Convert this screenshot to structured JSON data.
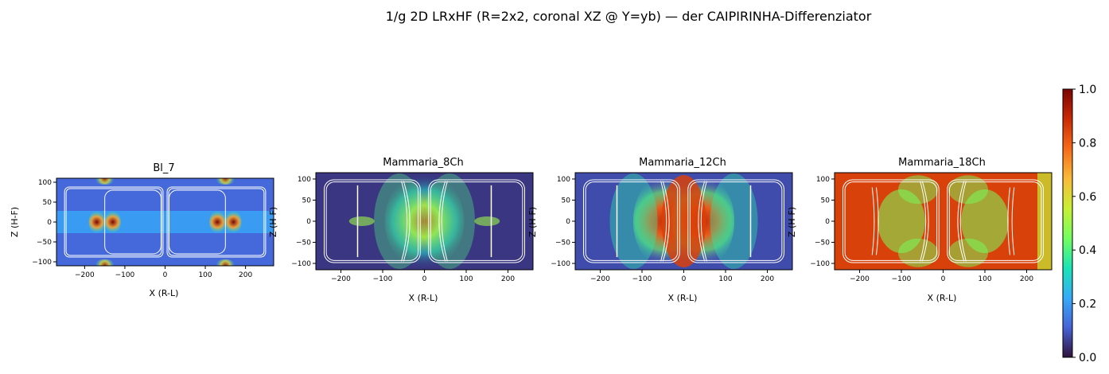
{
  "figure": {
    "title": "1/g 2D LRxHF (R=2x2, coronal XZ @ Y=yb) — der CAIPIRINHA-Differenziator"
  },
  "colormap": {
    "name": "turbo",
    "stops": [
      "#30123b",
      "#4662d7",
      "#36aaf9",
      "#1ae4b6",
      "#72fe5e",
      "#c8ef34",
      "#faba39",
      "#f66b19",
      "#ca2a04",
      "#7a0403"
    ]
  },
  "colorbar": {
    "min": 0.0,
    "max": 1.0,
    "ticks": [
      "0.0",
      "0.2",
      "0.4",
      "0.6",
      "0.8",
      "1.0"
    ]
  },
  "chart_data": [
    {
      "type": "heatmap",
      "title": "Bl_7",
      "xlabel": "X (R-L)",
      "ylabel": "Z (H-F)",
      "xlim": [
        -270,
        270
      ],
      "ylim": [
        -110,
        110
      ],
      "xticks": [
        "-200",
        "-100",
        "0",
        "100",
        "200"
      ],
      "yticks": [
        "-100",
        "-50",
        "0",
        "50",
        "100"
      ],
      "value_range": [
        0.0,
        1.0
      ],
      "field_description_levels": {
        "background": 0.12,
        "hotspots": 0.95
      }
    },
    {
      "type": "heatmap",
      "title": "Mammaria_8Ch",
      "xlabel": "X (R-L)",
      "ylabel": "Z (H-F)",
      "xlim": [
        -260,
        260
      ],
      "ylim": [
        -115,
        115
      ],
      "xticks": [
        "-200",
        "-100",
        "0",
        "100",
        "200"
      ],
      "yticks": [
        "-100",
        "-50",
        "0",
        "50",
        "100"
      ],
      "value_range": [
        0.0,
        1.0
      ],
      "field_description_levels": {
        "background": 0.05,
        "center": 0.85
      }
    },
    {
      "type": "heatmap",
      "title": "Mammaria_12Ch",
      "xlabel": "X (R-L)",
      "ylabel": "Z (H-F)",
      "xlim": [
        -260,
        260
      ],
      "ylim": [
        -115,
        115
      ],
      "xticks": [
        "-200",
        "-100",
        "0",
        "100",
        "200"
      ],
      "yticks": [
        "-100",
        "-50",
        "0",
        "50",
        "100"
      ],
      "value_range": [
        0.0,
        1.0
      ],
      "field_description_levels": {
        "background": 0.08,
        "center": 0.9
      }
    },
    {
      "type": "heatmap",
      "title": "Mammaria_18Ch",
      "xlabel": "X (R-L)",
      "ylabel": "Z (H-F)",
      "xlim": [
        -260,
        260
      ],
      "ylim": [
        -115,
        115
      ],
      "xticks": [
        "-200",
        "-100",
        "0",
        "100",
        "200"
      ],
      "yticks": [
        "-100",
        "-50",
        "0",
        "50",
        "100"
      ],
      "value_range": [
        0.0,
        1.0
      ],
      "field_description_levels": {
        "background": 0.85,
        "center": 0.9
      }
    }
  ]
}
